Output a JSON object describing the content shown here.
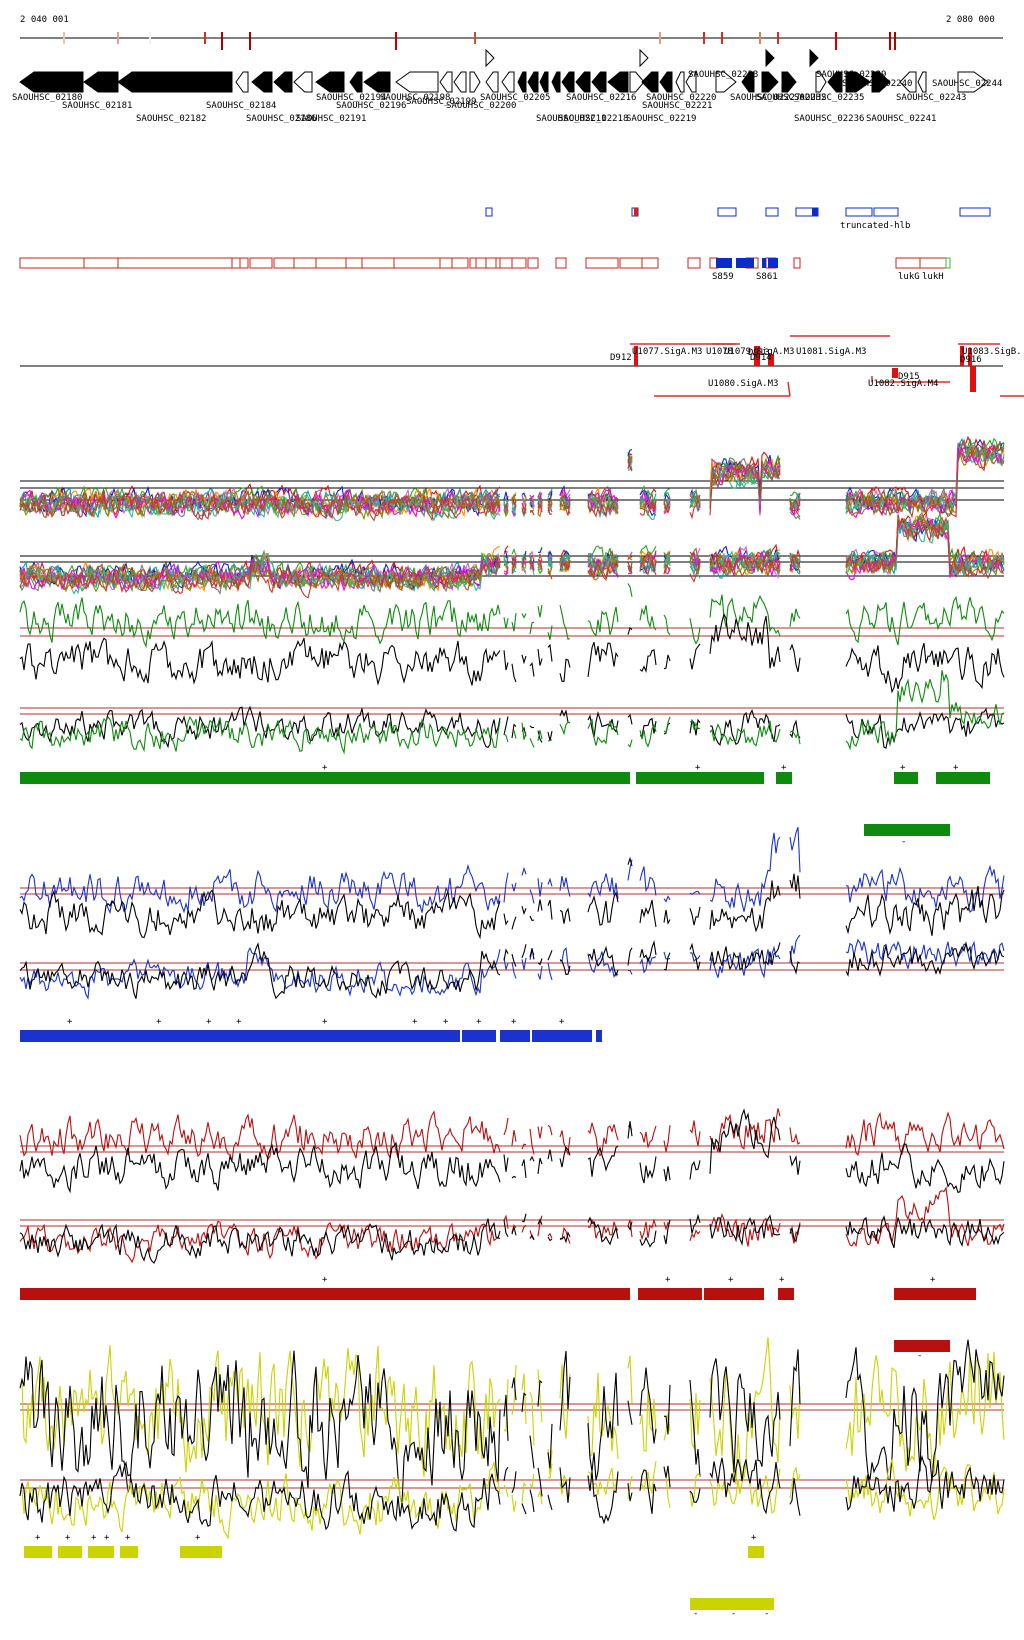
{
  "coords": {
    "start": "2 040 001",
    "end": "2 080 000"
  },
  "colors": {
    "gene": "#000000",
    "bar_red": "#cc2222",
    "bar_blue": "#0a2cc8",
    "green": "#0e8a0e",
    "blue": "#1a33cc",
    "red": "#b80f0f",
    "yellow": "#c9d400",
    "ref": "#b03030"
  },
  "genes_top": [
    "SAOUHSC_02180",
    "SAOUHSC_02181",
    "SAOUHSC_02182",
    "SAOUHSC_02184",
    "SAOUHSC_02186",
    "SAOUHSC_02191",
    "SAOUHSC_02194",
    "SAOUHSC_02196",
    "SAOUHSC_02198",
    "SAOUHSC_02199",
    "SAOUHSC_02200",
    "SAOUHSC_02205",
    "SAOUHSC_02211",
    "SAOUHSC_02216",
    "SAOUHSC_02218",
    "SAOUHSC_02219",
    "SAOUHSC_02220",
    "SAOUHSC_02221",
    "SAOUHSC_02223",
    "SAOUHSC_02227",
    "SAOUHSC_02232",
    "SAOUHSC_02235",
    "SAOUHSC_02236",
    "SAOUHSC_02239",
    "SAOUHSC_02240",
    "SAOUHSC_02241",
    "SAOUHSC_02243",
    "SAOUHSC_02244"
  ],
  "feature_labels": [
    "truncated-hlb",
    "S859",
    "S861",
    "lukG",
    "lukH"
  ],
  "promoters": [
    "U1077.SigA.M3",
    "U1078",
    "U1079.SigA.M3",
    "U1081.SigA.M3",
    "U1083.SigB.",
    "D912",
    "D913",
    "D914",
    "D915",
    "D916",
    "U1080.SigA.M3",
    "U1082.SigA.M4"
  ],
  "marks": {
    "plus": "+",
    "minus": "-"
  }
}
